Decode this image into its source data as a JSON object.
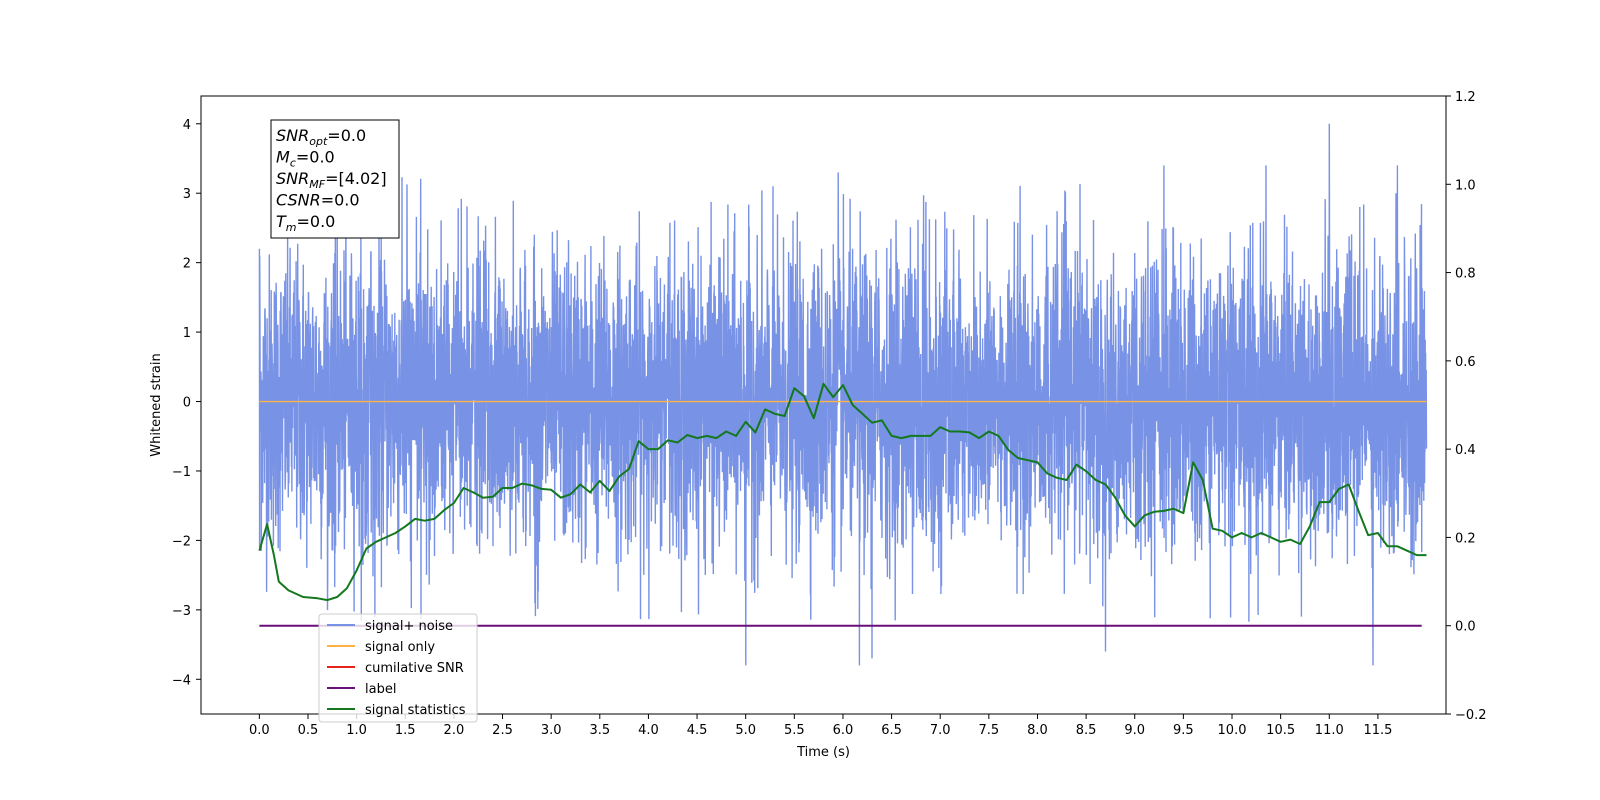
{
  "chart_data": {
    "type": "line",
    "xlabel": "Time (s)",
    "ylabel": "Whitened strain",
    "xlim": [
      -0.6,
      12.2
    ],
    "ylim": [
      -4.5,
      4.4
    ],
    "ylim_right": [
      -0.2,
      1.2
    ],
    "x_ticks": [
      "0.0",
      "0.5",
      "1.0",
      "1.5",
      "2.0",
      "2.5",
      "3.0",
      "3.5",
      "4.0",
      "4.5",
      "5.0",
      "5.5",
      "6.0",
      "6.5",
      "7.0",
      "7.5",
      "8.0",
      "8.5",
      "9.0",
      "9.5",
      "10.0",
      "10.5",
      "11.0",
      "11.5"
    ],
    "y_ticks": [
      "4",
      "3",
      "2",
      "1",
      "0",
      "−1",
      "−2",
      "−3",
      "−4"
    ],
    "y_ticks_right": [
      "1.2",
      "1.0",
      "0.8",
      "0.6",
      "0.4",
      "0.2",
      "0.0",
      "−0.2"
    ],
    "grid": false,
    "legend_position": "lower-left",
    "colors": {
      "signal_noise": "#7892e6",
      "signal_only": "#ffb347",
      "cumulative_snr": "#e8231a",
      "label": "#6b0f7a",
      "signal_statistics": "#13781e"
    },
    "series": [
      {
        "name": "signal+ noise",
        "axis": "left",
        "description_range": [
          -3.8,
          4.0
        ],
        "noise_sigma": 1.1,
        "x_range": [
          0.0,
          12.0
        ],
        "peaks": [
          [
            11.0,
            4.0
          ],
          [
            5.95,
            3.3
          ],
          [
            9.3,
            3.4
          ],
          [
            10.35,
            3.4
          ],
          [
            11.7,
            3.4
          ],
          [
            6.17,
            -3.9
          ],
          [
            11.45,
            -3.9
          ],
          [
            5.0,
            -3.8
          ],
          [
            6.3,
            -3.7
          ],
          [
            8.7,
            -3.6
          ]
        ]
      },
      {
        "name": "signal only",
        "axis": "left",
        "x": [
          0.0,
          12.0
        ],
        "y": [
          0.0,
          0.0
        ]
      },
      {
        "name": "cumilative SNR",
        "axis": "right",
        "x": [],
        "y": []
      },
      {
        "name": "label",
        "axis": "right",
        "x": [
          0.0,
          11.95
        ],
        "y": [
          0.0,
          0.0
        ]
      },
      {
        "name": "signal statistics",
        "axis": "right",
        "x": [
          0.0,
          0.08,
          0.15,
          0.2,
          0.3,
          0.45,
          0.6,
          0.7,
          0.8,
          0.9,
          1.0,
          1.1,
          1.2,
          1.4,
          1.5,
          1.6,
          1.7,
          1.8,
          1.9,
          2.0,
          2.1,
          2.2,
          2.3,
          2.4,
          2.5,
          2.6,
          2.7,
          2.8,
          2.9,
          3.0,
          3.1,
          3.2,
          3.3,
          3.4,
          3.5,
          3.6,
          3.7,
          3.8,
          3.9,
          4.0,
          4.1,
          4.2,
          4.3,
          4.4,
          4.5,
          4.6,
          4.7,
          4.8,
          4.9,
          5.0,
          5.1,
          5.2,
          5.3,
          5.4,
          5.5,
          5.6,
          5.7,
          5.8,
          5.9,
          6.0,
          6.1,
          6.2,
          6.3,
          6.4,
          6.5,
          6.6,
          6.7,
          6.8,
          6.9,
          7.0,
          7.1,
          7.2,
          7.3,
          7.4,
          7.5,
          7.6,
          7.7,
          7.8,
          7.9,
          8.0,
          8.1,
          8.2,
          8.3,
          8.4,
          8.5,
          8.6,
          8.7,
          8.8,
          8.9,
          9.0,
          9.1,
          9.2,
          9.3,
          9.4,
          9.5,
          9.6,
          9.7,
          9.8,
          9.9,
          10.0,
          10.1,
          10.2,
          10.3,
          10.4,
          10.5,
          10.6,
          10.7,
          10.8,
          10.9,
          11.0,
          11.1,
          11.2,
          11.3,
          11.4,
          11.5,
          11.6,
          11.7,
          11.8,
          11.9,
          12.0
        ],
        "y": [
          0.17,
          0.23,
          0.16,
          0.1,
          0.08,
          0.065,
          0.062,
          0.058,
          0.065,
          0.085,
          0.125,
          0.175,
          0.19,
          0.21,
          0.225,
          0.242,
          0.238,
          0.242,
          0.262,
          0.278,
          0.312,
          0.302,
          0.29,
          0.292,
          0.312,
          0.312,
          0.322,
          0.318,
          0.31,
          0.308,
          0.29,
          0.298,
          0.32,
          0.302,
          0.328,
          0.305,
          0.338,
          0.355,
          0.418,
          0.4,
          0.4,
          0.42,
          0.415,
          0.432,
          0.425,
          0.43,
          0.425,
          0.44,
          0.43,
          0.462,
          0.438,
          0.49,
          0.48,
          0.475,
          0.538,
          0.52,
          0.47,
          0.548,
          0.518,
          0.545,
          0.5,
          0.48,
          0.46,
          0.465,
          0.43,
          0.425,
          0.43,
          0.43,
          0.43,
          0.45,
          0.44,
          0.44,
          0.438,
          0.425,
          0.44,
          0.43,
          0.398,
          0.38,
          0.375,
          0.37,
          0.345,
          0.335,
          0.33,
          0.365,
          0.35,
          0.33,
          0.32,
          0.29,
          0.25,
          0.225,
          0.25,
          0.258,
          0.26,
          0.265,
          0.255,
          0.37,
          0.33,
          0.22,
          0.215,
          0.2,
          0.21,
          0.2,
          0.21,
          0.2,
          0.19,
          0.195,
          0.185,
          0.225,
          0.28,
          0.28,
          0.31,
          0.32,
          0.26,
          0.205,
          0.21,
          0.18,
          0.18,
          0.17,
          0.16,
          0.16
        ]
      }
    ],
    "annotations": [
      {
        "sym": "SNR",
        "sub": "opt",
        "rest": "=0.0"
      },
      {
        "sym": "M",
        "sub": "c",
        "rest": "=0.0"
      },
      {
        "sym": "SNR",
        "sub": "MF",
        "rest": "=[4.02]"
      },
      {
        "sym": "CSNR",
        "sub": "",
        "rest": "=0.0"
      },
      {
        "sym": "T",
        "sub": "m",
        "rest": "=0.0"
      }
    ]
  }
}
